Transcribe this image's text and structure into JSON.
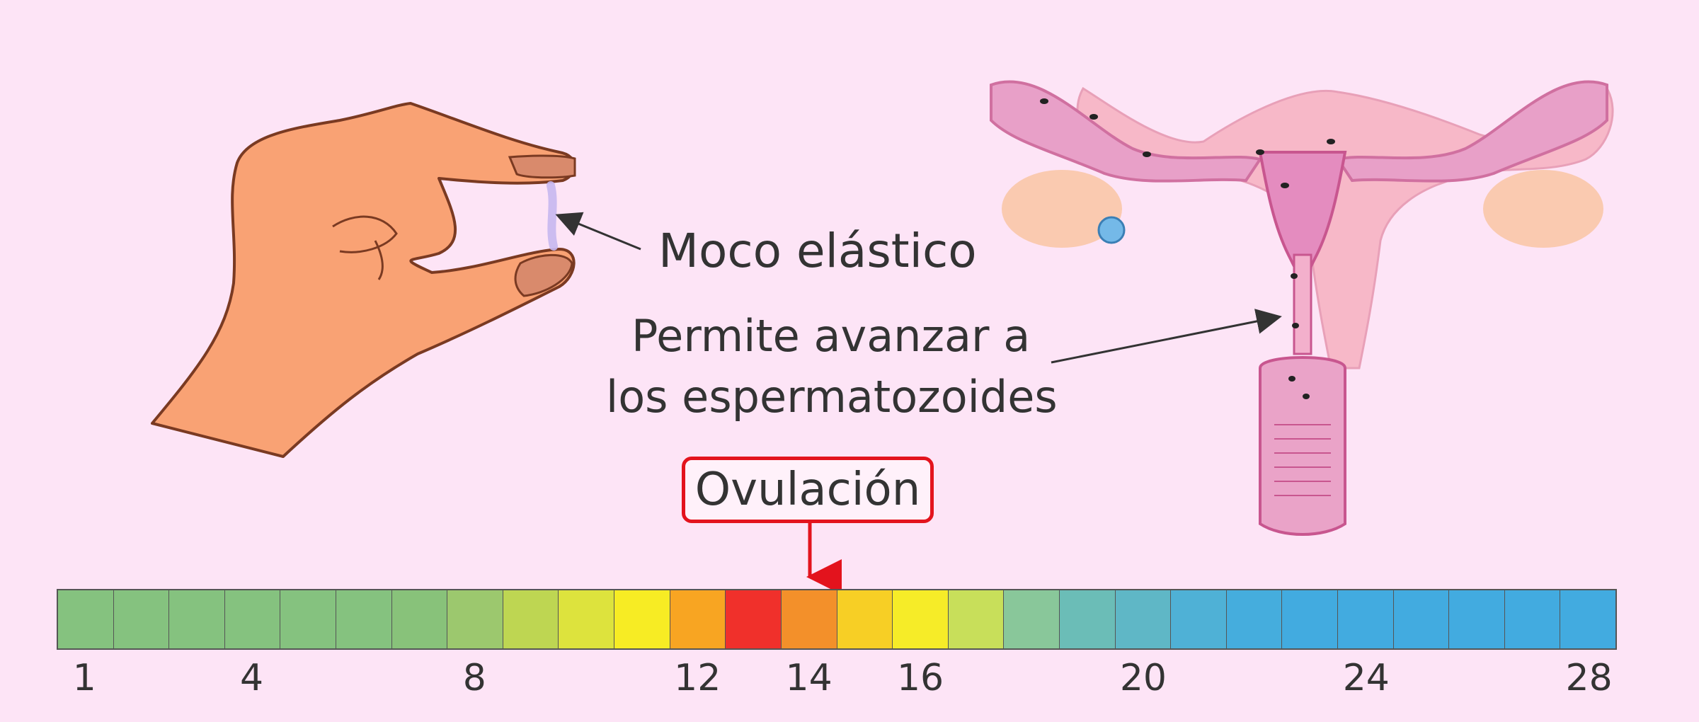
{
  "labels": {
    "mucus": "Moco elástico",
    "sperm_line1": "Permite avanzar a",
    "sperm_line2": "los espermatozoides",
    "ovulation": "Ovulación"
  },
  "cycle": {
    "days": 28,
    "ovulation_day": 14,
    "tick_labels": [
      "1",
      "4",
      "8",
      "12",
      "14",
      "16",
      "20",
      "24",
      "28"
    ],
    "tick_days": [
      1,
      4,
      8,
      12,
      14,
      16,
      20,
      24,
      28
    ],
    "colors": [
      "#85c27f",
      "#85c27f",
      "#85c27f",
      "#85c27f",
      "#85c27f",
      "#85c27f",
      "#88c27a",
      "#9cc86e",
      "#bed652",
      "#dde33d",
      "#f7ec24",
      "#f8a522",
      "#f0302b",
      "#f3902a",
      "#f7cf25",
      "#f6ec28",
      "#c8df5a",
      "#89c79a",
      "#6bbdb7",
      "#5fb7c6",
      "#4fb1d6",
      "#45addd",
      "#42abe0",
      "#42abe0",
      "#42abe0",
      "#42abe0",
      "#42abe0",
      "#42abe0"
    ]
  }
}
